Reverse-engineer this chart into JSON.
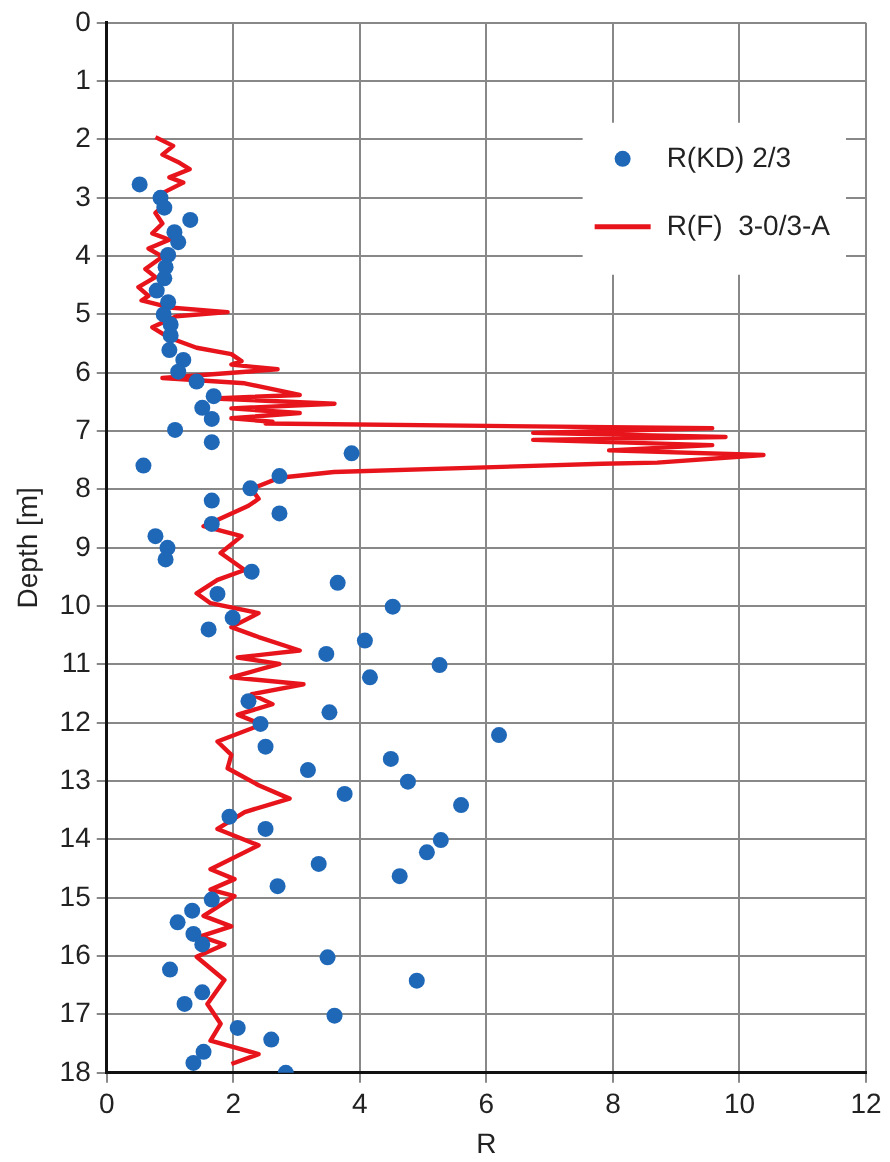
{
  "chart_data": {
    "type": "scatter",
    "xlabel": "R",
    "ylabel": "Depth [m]",
    "xlim": [
      0,
      12
    ],
    "xticks": [
      0,
      2,
      4,
      6,
      8,
      10,
      12
    ],
    "ylim": [
      18,
      0
    ],
    "yticks": [
      0,
      1,
      2,
      3,
      4,
      5,
      6,
      7,
      8,
      9,
      10,
      11,
      12,
      13,
      14,
      15,
      16,
      17,
      18
    ],
    "grid": true,
    "legend": "top right",
    "series": [
      {
        "name": "R(KD) 2/3",
        "marker": "circle",
        "color": "#1f68b8",
        "x": [
          0.52,
          0.85,
          0.91,
          1.32,
          1.07,
          1.13,
          0.97,
          0.93,
          0.91,
          0.79,
          0.97,
          0.9,
          1.01,
          1.01,
          0.99,
          1.21,
          1.13,
          1.42,
          1.69,
          1.51,
          1.66,
          1.08,
          1.66,
          3.87,
          0.58,
          2.73,
          2.27,
          1.66,
          2.73,
          1.66,
          0.77,
          0.96,
          0.93,
          2.29,
          3.65,
          1.75,
          4.52,
          1.99,
          1.61,
          4.08,
          3.47,
          5.26,
          4.16,
          2.24,
          3.52,
          2.43,
          6.2,
          2.51,
          4.49,
          3.18,
          4.76,
          3.76,
          5.6,
          1.94,
          2.51,
          5.28,
          5.06,
          3.35,
          4.63,
          2.7,
          1.66,
          1.35,
          1.12,
          1.37,
          1.51,
          3.49,
          1.0,
          4.9,
          1.51,
          1.23,
          3.6,
          2.07,
          2.6,
          1.53,
          1.37,
          2.83
        ],
        "values": [
          2.77,
          3.0,
          3.17,
          3.38,
          3.59,
          3.76,
          3.98,
          4.19,
          4.38,
          4.59,
          4.79,
          5.0,
          5.17,
          5.36,
          5.61,
          5.78,
          5.98,
          6.15,
          6.4,
          6.6,
          6.79,
          6.98,
          7.19,
          7.38,
          7.59,
          7.77,
          7.98,
          8.19,
          8.41,
          8.59,
          8.8,
          9.0,
          9.2,
          9.41,
          9.6,
          9.79,
          10.01,
          10.2,
          10.4,
          10.59,
          10.82,
          11.01,
          11.22,
          11.63,
          11.82,
          12.02,
          12.21,
          12.41,
          12.62,
          12.81,
          13.01,
          13.22,
          13.41,
          13.61,
          13.82,
          14.01,
          14.22,
          14.42,
          14.63,
          14.8,
          15.03,
          15.22,
          15.42,
          15.62,
          15.8,
          16.02,
          16.23,
          16.42,
          16.62,
          16.82,
          17.02,
          17.23,
          17.43,
          17.64,
          17.83,
          18.0
        ]
      },
      {
        "name": "R(F)  3-0/3-A",
        "type": "line",
        "marker": "none",
        "line_style": "solid",
        "color": "#e8141c",
        "x": [
          0.77,
          1.05,
          0.88,
          1.15,
          1.31,
          0.99,
          1.21,
          0.88,
          0.94,
          0.77,
          0.88,
          0.72,
          0.99,
          0.66,
          0.88,
          0.61,
          0.77,
          0.5,
          0.66,
          0.55,
          0.99,
          1.91,
          1.1,
          0.72,
          0.99,
          1.42,
          1.97,
          2.13,
          1.97,
          2.7,
          0.88,
          2.18,
          3.05,
          1.69,
          3.6,
          1.97,
          3.05,
          1.97,
          2.62,
          2.51,
          9.57,
          6.74,
          9.78,
          6.74,
          9.57,
          7.94,
          10.38,
          8.7,
          7.83,
          3.59,
          2.73,
          2.29,
          2.4,
          2.24,
          1.53,
          2.13,
          1.8,
          2.18,
          1.75,
          1.42,
          1.64,
          2.4,
          1.97,
          2.4,
          3.05,
          2.07,
          2.73,
          1.97,
          3.11,
          2.29,
          2.62,
          2.07,
          2.45,
          1.75,
          1.97,
          1.91,
          2.4,
          2.89,
          2.18,
          1.75,
          2.4,
          1.64,
          2.02,
          1.64,
          2.02,
          1.53,
          1.97,
          1.48,
          1.86,
          1.42,
          1.86,
          1.59,
          1.8,
          1.64,
          2.4,
          1.97
        ],
        "values": [
          1.96,
          2.11,
          2.26,
          2.4,
          2.51,
          2.65,
          2.74,
          2.92,
          3.09,
          3.26,
          3.44,
          3.61,
          3.72,
          3.87,
          4.01,
          4.22,
          4.36,
          4.53,
          4.68,
          4.76,
          4.88,
          4.96,
          5.03,
          5.22,
          5.4,
          5.57,
          5.68,
          5.8,
          5.86,
          5.94,
          6.09,
          6.18,
          6.38,
          6.44,
          6.53,
          6.61,
          6.69,
          6.78,
          6.84,
          6.87,
          6.95,
          7.03,
          7.1,
          7.15,
          7.24,
          7.33,
          7.41,
          7.54,
          7.56,
          7.7,
          7.8,
          7.99,
          8.16,
          8.28,
          8.63,
          8.8,
          9.09,
          9.38,
          9.55,
          9.78,
          9.95,
          10.12,
          10.36,
          10.53,
          10.76,
          10.88,
          10.99,
          11.22,
          11.34,
          11.51,
          11.68,
          11.86,
          12.03,
          12.32,
          12.55,
          12.78,
          13.07,
          13.3,
          13.53,
          13.82,
          14.1,
          14.51,
          14.68,
          14.86,
          14.97,
          15.31,
          15.49,
          15.66,
          15.8,
          16.01,
          16.41,
          16.82,
          17.16,
          17.45,
          17.68,
          17.85
        ]
      }
    ]
  }
}
